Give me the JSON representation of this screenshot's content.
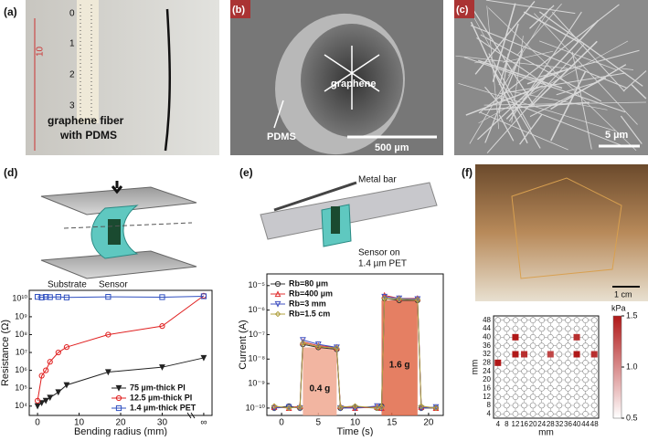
{
  "panels": {
    "a": {
      "label": "(a)",
      "ruler": [
        "0",
        "1",
        "2",
        "3"
      ],
      "ruler_mark": "10",
      "caption": [
        "graphene fiber",
        "with PDMS"
      ]
    },
    "b": {
      "label": "(b)",
      "inner": "graphene",
      "outer": "PDMS",
      "scale": "500 µm"
    },
    "c": {
      "label": "(c)",
      "scale": "5 µm"
    },
    "d": {
      "label": "(d)",
      "labels": [
        "Substrate",
        "Sensor"
      ]
    },
    "e": {
      "label": "(e)",
      "labels": [
        "Metal bar",
        "Sensor on",
        "1.4 µm PET"
      ]
    },
    "f": {
      "label": "(f)",
      "scale": "1 cm"
    }
  },
  "chart_data": [
    {
      "type": "line",
      "ylabel": "Resistance (Ω)",
      "xlabel": "Bending radius (mm)",
      "log_y": true,
      "xlim": [
        -2,
        42
      ],
      "ylim": [
        3000,
        30000000000
      ],
      "xticks": [
        0,
        10,
        20,
        30,
        {
          "value": 40,
          "label": "∞"
        }
      ],
      "yticks": [
        {
          "value": 10000,
          "label": "10⁴"
        },
        {
          "value": 100000,
          "label": "10⁵"
        },
        {
          "value": 1000000,
          "label": "10⁶"
        },
        {
          "value": 10000000,
          "label": "10⁷"
        },
        {
          "value": 100000000,
          "label": "10⁸"
        },
        {
          "value": 1000000000,
          "label": "10⁹"
        },
        {
          "value": 10000000000,
          "label": "10¹⁰"
        }
      ],
      "legend": "lower right",
      "x": [
        0,
        1,
        2,
        3,
        5,
        7,
        17,
        30,
        40
      ],
      "series": [
        {
          "name": "75 µm-thick PI",
          "color": "#222222",
          "marker": "triangle-down",
          "values": [
            10000,
            15000,
            20000,
            30000,
            60000,
            150000,
            800000,
            1500000,
            5000000
          ]
        },
        {
          "name": "12.5 µm-thick PI",
          "color": "#e02020",
          "marker": "circle",
          "values": [
            20000,
            500000,
            1000000,
            3000000,
            10000000,
            20000000,
            100000000,
            300000000,
            15000000000
          ]
        },
        {
          "name": "1.4 µm-thick PET",
          "color": "#3050c0",
          "marker": "square",
          "values": [
            13000000000,
            12000000000,
            13000000000,
            12500000000,
            13000000000,
            12000000000,
            13000000000,
            12500000000,
            14000000000
          ]
        }
      ]
    },
    {
      "type": "line",
      "ylabel": "Current (A)",
      "xlabel": "Time (s)",
      "log_y": true,
      "xlim": [
        -2,
        22
      ],
      "ylim": [
        5e-11,
        3e-05
      ],
      "xticks": [
        0,
        5,
        10,
        15,
        20
      ],
      "yticks": [
        {
          "value": 1e-10,
          "label": "10⁻¹⁰"
        },
        {
          "value": 1e-09,
          "label": "10⁻⁹"
        },
        {
          "value": 1e-08,
          "label": "10⁻⁸"
        },
        {
          "value": 1e-07,
          "label": "10⁻⁷"
        },
        {
          "value": 1e-06,
          "label": "10⁻⁶"
        },
        {
          "value": 1e-05,
          "label": "10⁻⁵"
        }
      ],
      "legend": "upper left",
      "annotations": [
        {
          "text": "0.4 g",
          "x0": 2.9,
          "x1": 7.5,
          "y": 3e-08,
          "color": "#f0a890"
        },
        {
          "text": "1.6 g",
          "x0": 13.6,
          "x1": 18.5,
          "y": 2.5e-06,
          "color": "#e06848"
        }
      ],
      "x": [
        -1,
        1,
        2.5,
        2.9,
        5,
        7.5,
        8,
        10,
        13,
        13.6,
        14,
        16,
        18.5,
        19,
        21
      ],
      "series": [
        {
          "name": "Rb=80 µm",
          "color": "#333333",
          "marker": "circle",
          "values": [
            1e-10,
            1.2e-10,
            1e-10,
            4e-08,
            3e-08,
            2.5e-08,
            1e-10,
            1.1e-10,
            1e-10,
            1.2e-10,
            3e-06,
            2.5e-06,
            2.5e-06,
            1e-10,
            1e-10
          ]
        },
        {
          "name": "Rb=400 µm",
          "color": "#e03030",
          "marker": "triangle-up",
          "values": [
            1.1e-10,
            1e-10,
            1.2e-10,
            5e-08,
            3.5e-08,
            3e-08,
            1.2e-10,
            1e-10,
            1.1e-10,
            1e-10,
            4e-06,
            3e-06,
            3e-06,
            1.1e-10,
            1e-10
          ]
        },
        {
          "name": "Rb=3 mm",
          "color": "#4050c0",
          "marker": "triangle-down",
          "values": [
            1e-10,
            1.1e-10,
            1e-10,
            6e-08,
            4e-08,
            3e-08,
            1e-10,
            1e-10,
            1.2e-10,
            1e-10,
            3.5e-06,
            3e-06,
            2.8e-06,
            1e-10,
            1.1e-10
          ]
        },
        {
          "name": "Rb=1.5 cm",
          "color": "#b0a040",
          "marker": "diamond",
          "values": [
            1.2e-10,
            1e-10,
            1.1e-10,
            4.5e-08,
            3.2e-08,
            2.8e-08,
            1.1e-10,
            1.2e-10,
            1e-10,
            1.1e-10,
            3e-06,
            2.8e-06,
            2.6e-06,
            1.2e-10,
            1e-10
          ]
        }
      ]
    },
    {
      "type": "heatmap",
      "xlabel": "mm",
      "ylabel": "mm",
      "colorbar_label": "kPa",
      "xlim": [
        2,
        50
      ],
      "ylim": [
        2,
        50
      ],
      "xticks": [
        4,
        8,
        12,
        16,
        20,
        24,
        28,
        32,
        36,
        40,
        44,
        48
      ],
      "yticks": [
        4,
        8,
        12,
        16,
        20,
        24,
        28,
        32,
        36,
        40,
        44,
        48
      ],
      "clim": [
        0.5,
        1.5
      ],
      "cticks": [
        0.5,
        {
          "value": 1,
          "label": "1.0"
        },
        1.5
      ],
      "colors": [
        "#ffffff",
        "#b01818"
      ],
      "points": {
        "x": [
          12,
          40,
          12,
          16,
          28,
          40,
          48,
          4
        ],
        "y": [
          40,
          40,
          32,
          32,
          32,
          32,
          32,
          28
        ],
        "values": [
          1.5,
          1.4,
          1.5,
          1.4,
          1.3,
          1.5,
          1.4,
          1.5
        ]
      }
    }
  ]
}
